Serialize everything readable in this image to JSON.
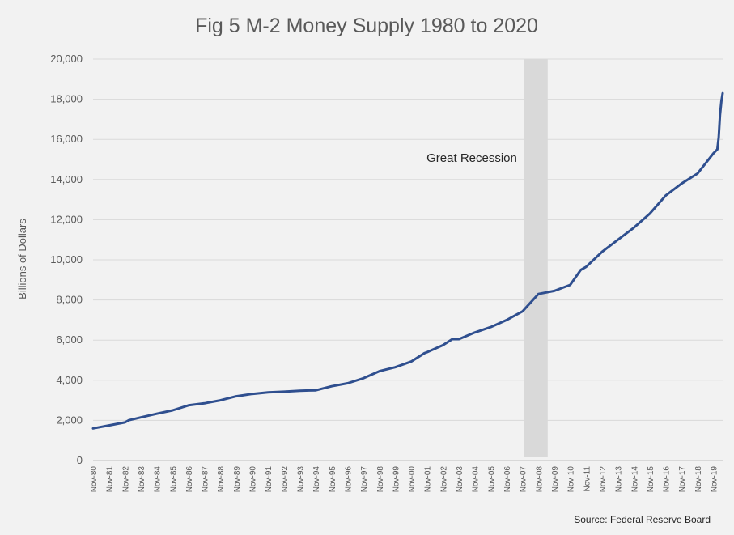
{
  "chart_data": {
    "type": "line",
    "title": "Fig 5 M-2 Money Supply 1980 to 2020",
    "xlabel": "",
    "ylabel": "Billions of Dollars",
    "ylim": [
      0,
      20000
    ],
    "y_ticks": [
      0,
      2000,
      4000,
      6000,
      8000,
      10000,
      12000,
      14000,
      16000,
      18000,
      20000
    ],
    "y_tick_labels": [
      "0",
      "2,000",
      "4,000",
      "6,000",
      "8,000",
      "10,000",
      "12,000",
      "14,000",
      "16,000",
      "18,000",
      "20,000"
    ],
    "x_tick_labels": [
      "Nov-80",
      "Nov-81",
      "Nov-82",
      "Nov-83",
      "Nov-84",
      "Nov-85",
      "Nov-86",
      "Nov-87",
      "Nov-88",
      "Nov-89",
      "Nov-90",
      "Nov-91",
      "Nov-92",
      "Nov-93",
      "Nov-94",
      "Nov-95",
      "Nov-96",
      "Nov-97",
      "Nov-98",
      "Nov-99",
      "Nov-00",
      "Nov-01",
      "Nov-02",
      "Nov-03",
      "Nov-04",
      "Nov-05",
      "Nov-06",
      "Nov-07",
      "Nov-08",
      "Nov-09",
      "Nov-10",
      "Nov-11",
      "Nov-12",
      "Nov-13",
      "Nov-14",
      "Nov-15",
      "Nov-16",
      "Nov-17",
      "Nov-18",
      "Nov-19"
    ],
    "x_range": [
      "Nov-80",
      "Jun-20"
    ],
    "grid": "horizontal",
    "legend": "none",
    "shaded_region": {
      "label": "Great Recession",
      "start": "Dec-07",
      "end": "Jun-09"
    },
    "series": [
      {
        "points": [
          [
            "Nov-80",
            1600
          ],
          [
            "Nov-81",
            1750
          ],
          [
            "Nov-82",
            1900
          ],
          [
            "Feb-83",
            2010
          ],
          [
            "Nov-83",
            2150
          ],
          [
            "Nov-84",
            2330
          ],
          [
            "Nov-85",
            2500
          ],
          [
            "Nov-86",
            2750
          ],
          [
            "Nov-87",
            2850
          ],
          [
            "Nov-88",
            3000
          ],
          [
            "Nov-89",
            3200
          ],
          [
            "Nov-90",
            3320
          ],
          [
            "Nov-91",
            3400
          ],
          [
            "Nov-92",
            3430
          ],
          [
            "Nov-93",
            3480
          ],
          [
            "Nov-94",
            3500
          ],
          [
            "Nov-95",
            3700
          ],
          [
            "Nov-96",
            3850
          ],
          [
            "Nov-97",
            4100
          ],
          [
            "Nov-98",
            4450
          ],
          [
            "Nov-99",
            4650
          ],
          [
            "Nov-00",
            4930
          ],
          [
            "Sep-01",
            5350
          ],
          [
            "Nov-01",
            5400
          ],
          [
            "Nov-02",
            5750
          ],
          [
            "Jun-03",
            6050
          ],
          [
            "Nov-03",
            6050
          ],
          [
            "Nov-04",
            6380
          ],
          [
            "Nov-05",
            6650
          ],
          [
            "Nov-06",
            7000
          ],
          [
            "Nov-07",
            7430
          ],
          [
            "Nov-08",
            8300
          ],
          [
            "Nov-09",
            8450
          ],
          [
            "Nov-10",
            8750
          ],
          [
            "Jul-11",
            9500
          ],
          [
            "Nov-11",
            9650
          ],
          [
            "Nov-12",
            10400
          ],
          [
            "Nov-13",
            11000
          ],
          [
            "Nov-14",
            11600
          ],
          [
            "Nov-15",
            12300
          ],
          [
            "Nov-16",
            13200
          ],
          [
            "Nov-17",
            13800
          ],
          [
            "Nov-18",
            14300
          ],
          [
            "Nov-19",
            15300
          ],
          [
            "Feb-20",
            15500
          ],
          [
            "Mar-20",
            16100
          ],
          [
            "Apr-20",
            17200
          ],
          [
            "May-20",
            17900
          ],
          [
            "Jun-20",
            18300
          ]
        ]
      }
    ],
    "source_note": "Source: Federal Reserve Board",
    "colors": {
      "line": "#2f4f8f",
      "recession": "#d9d9d9",
      "grid": "#d9d9d9",
      "background": "#f2f2f2"
    }
  }
}
